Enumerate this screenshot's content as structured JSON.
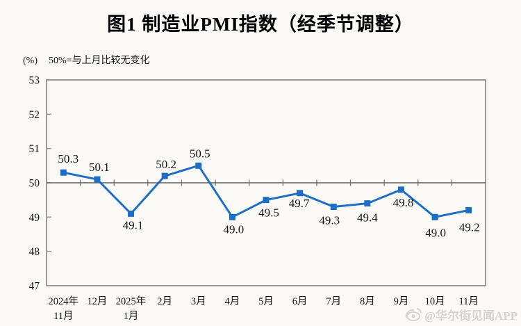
{
  "page": {
    "title": "图1  制造业PMI指数（经季节调整）",
    "unit_label": "(%)",
    "note": "50%=与上月比较无变化",
    "watermark": "@华尔街见闻APP"
  },
  "chart_data": {
    "type": "line",
    "title": "图1 制造业PMI指数（经季节调整）",
    "xlabel": "",
    "ylabel": "(%)",
    "baseline_note": "50%=与上月比较无变化",
    "categories": [
      [
        "2024年",
        "11月"
      ],
      [
        "12月"
      ],
      [
        "2025年",
        "1月"
      ],
      [
        "2月"
      ],
      [
        "3月"
      ],
      [
        "4月"
      ],
      [
        "5月"
      ],
      [
        "6月"
      ],
      [
        "7月"
      ],
      [
        "8月"
      ],
      [
        "9月"
      ],
      [
        "10月"
      ],
      [
        "11月"
      ]
    ],
    "series": [
      {
        "name": "制造业PMI",
        "values": [
          50.3,
          50.1,
          49.1,
          50.2,
          50.5,
          49.0,
          49.5,
          49.7,
          49.3,
          49.4,
          49.8,
          49.0,
          49.2
        ]
      }
    ],
    "ylim": [
      47,
      53
    ],
    "ytick_step": 1,
    "axis_cross_at": 50,
    "grid": false,
    "legend_position": "none",
    "line_color": "#1e6ec8",
    "marker": "square",
    "axis_color": "#9b9b9b",
    "baseline_color": "#757575",
    "label_color": "#141414"
  }
}
